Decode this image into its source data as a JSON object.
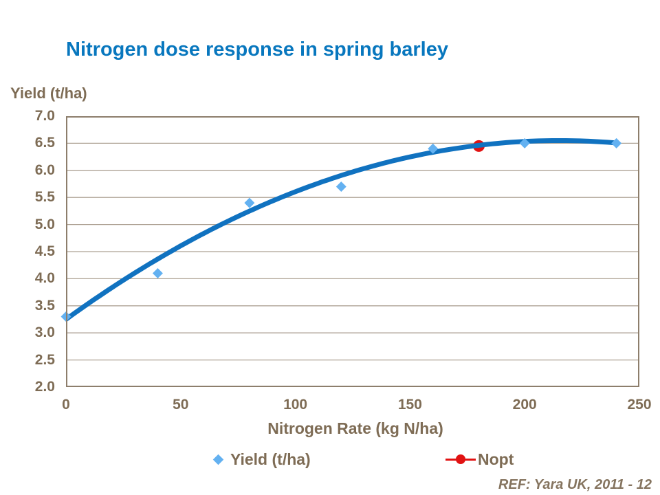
{
  "slide": {
    "title": "Nitrogen dose response in spring barley",
    "reference": "REF: Yara UK, 2011 - 12"
  },
  "colors": {
    "background": "#FFFFFF",
    "title": "#0877BE",
    "axis_text": "#7E6C55",
    "ref_text": "#85745F",
    "gridline": "#AEA294",
    "axis_border": "#8D7E6C"
  },
  "chart_data": {
    "type": "scatter",
    "title": "Nitrogen dose response in spring barley",
    "xlabel": "Nitrogen Rate (kg N/ha)",
    "ylabel": "Yield (t/ha)",
    "xlim": [
      0,
      250
    ],
    "ylim": [
      2.0,
      7.0
    ],
    "xticks": [
      0,
      50,
      100,
      150,
      200,
      250
    ],
    "xtick_labels": [
      "0",
      "50",
      "100",
      "150",
      "200",
      "250"
    ],
    "yticks": [
      7.0,
      6.5,
      6.0,
      5.5,
      5.0,
      4.5,
      4.0,
      3.5,
      3.0,
      2.5,
      2.0
    ],
    "ytick_labels": [
      "7.0",
      "6.5",
      "6.0",
      "5.5",
      "5.0",
      "4.5",
      "4.0",
      "3.5",
      "3.0",
      "2.5",
      "2.0"
    ],
    "grid": "horizontal",
    "legend_position": "bottom",
    "series": [
      {
        "name": "Yield (t/ha)",
        "marker": "diamond",
        "color": "#63B1F1",
        "points": [
          [
            0,
            3.3
          ],
          [
            40,
            4.1
          ],
          [
            80,
            5.4
          ],
          [
            120,
            5.7
          ],
          [
            160,
            6.4
          ],
          [
            200,
            6.5
          ],
          [
            240,
            6.5
          ]
        ]
      },
      {
        "name": "Nopt",
        "marker": "circle",
        "color": "#E11212",
        "points": [
          [
            180,
            6.45
          ]
        ]
      }
    ],
    "trendline": {
      "type": "quadratic_peak",
      "peak_x": 215,
      "peak_y": 6.55,
      "k": 7.14e-05,
      "x_range": [
        0,
        240
      ],
      "color": "#1072C0",
      "stroke_width": 7
    }
  }
}
